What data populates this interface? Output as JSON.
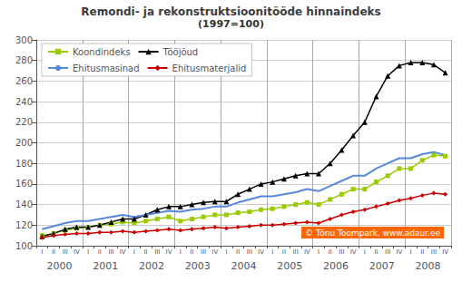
{
  "chart_data": {
    "type": "line",
    "title": "Remondi- ja rekonstruktsioonitööde hinnaindeks",
    "subtitle": "(1997=100)",
    "categories": [
      "I",
      "II",
      "III",
      "IV",
      "I",
      "II",
      "III",
      "IV",
      "I",
      "II",
      "III",
      "IV",
      "I",
      "II",
      "III",
      "IV",
      "I",
      "II",
      "III",
      "IV",
      "I",
      "II",
      "III",
      "IV",
      "I",
      "II",
      "III",
      "IV",
      "I",
      "II",
      "III",
      "IV",
      "I",
      "II",
      "III",
      "IV"
    ],
    "category_groups": [
      "2000",
      "2001",
      "2002",
      "2003",
      "2004",
      "2005",
      "2006",
      "2007",
      "2008"
    ],
    "series": [
      {
        "name": "Koondindeks",
        "color": "#99cc00",
        "marker": "square",
        "values": [
          110,
          112,
          115,
          117,
          118,
          120,
          121,
          123,
          122,
          124,
          126,
          128,
          124,
          126,
          128,
          130,
          130,
          132,
          133,
          135,
          136,
          138,
          140,
          142,
          140,
          145,
          150,
          155,
          155,
          162,
          168,
          175,
          175,
          183,
          188,
          187
        ]
      },
      {
        "name": "Tööjõud",
        "color": "#000000",
        "marker": "triangle",
        "values": [
          109,
          112,
          116,
          118,
          118,
          120,
          123,
          126,
          126,
          130,
          135,
          138,
          138,
          140,
          142,
          143,
          143,
          150,
          155,
          160,
          162,
          165,
          168,
          170,
          170,
          180,
          193,
          207,
          220,
          245,
          265,
          275,
          278,
          278,
          276,
          268
        ]
      },
      {
        "name": "Ehitusmasinad",
        "color": "#5588dd",
        "marker": "none",
        "values": [
          116,
          119,
          122,
          124,
          124,
          126,
          128,
          130,
          128,
          130,
          132,
          134,
          133,
          135,
          136,
          138,
          138,
          142,
          145,
          148,
          148,
          150,
          152,
          155,
          153,
          158,
          163,
          168,
          168,
          175,
          180,
          185,
          185,
          189,
          191,
          188
        ]
      },
      {
        "name": "Ehitusmaterjalid",
        "color": "#cc0000",
        "marker": "diamond",
        "values": [
          108,
          110,
          111,
          112,
          112,
          113,
          113,
          114,
          113,
          114,
          115,
          116,
          115,
          116,
          117,
          118,
          117,
          118,
          119,
          120,
          120,
          121,
          122,
          123,
          122,
          126,
          130,
          133,
          135,
          138,
          141,
          144,
          146,
          149,
          151,
          150
        ]
      }
    ],
    "ylim": [
      100,
      300
    ],
    "yticks": [
      100,
      120,
      140,
      160,
      180,
      200,
      220,
      240,
      260,
      280,
      300
    ],
    "grid": true,
    "legend": "upper left",
    "annotations": [
      {
        "text": "© Tõnu Toompark, www.adaur.ee",
        "color": "#ff6600"
      }
    ]
  }
}
